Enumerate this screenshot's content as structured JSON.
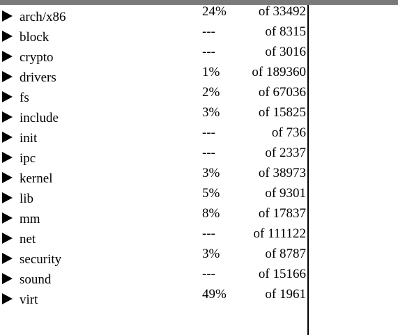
{
  "rows": [
    {
      "name": "arch/x86",
      "percent": "24%",
      "total": "of 33492"
    },
    {
      "name": "block",
      "percent": "---",
      "total": "of 8315"
    },
    {
      "name": "crypto",
      "percent": "---",
      "total": "of 3016"
    },
    {
      "name": "drivers",
      "percent": "1%",
      "total": "of 189360"
    },
    {
      "name": "fs",
      "percent": "2%",
      "total": "of 67036"
    },
    {
      "name": "include",
      "percent": "3%",
      "total": "of 15825"
    },
    {
      "name": "init",
      "percent": "---",
      "total": "of 736"
    },
    {
      "name": "ipc",
      "percent": "---",
      "total": "of 2337"
    },
    {
      "name": "kernel",
      "percent": "3%",
      "total": "of 38973"
    },
    {
      "name": "lib",
      "percent": "5%",
      "total": "of 9301"
    },
    {
      "name": "mm",
      "percent": "8%",
      "total": "of 17837"
    },
    {
      "name": "net",
      "percent": "---",
      "total": "of 111122"
    },
    {
      "name": "security",
      "percent": "3%",
      "total": "of 8787"
    },
    {
      "name": "sound",
      "percent": "---",
      "total": "of 15166"
    },
    {
      "name": "virt",
      "percent": "49%",
      "total": "of 1961"
    }
  ],
  "icons": {
    "expand": "triangle-right-icon"
  }
}
